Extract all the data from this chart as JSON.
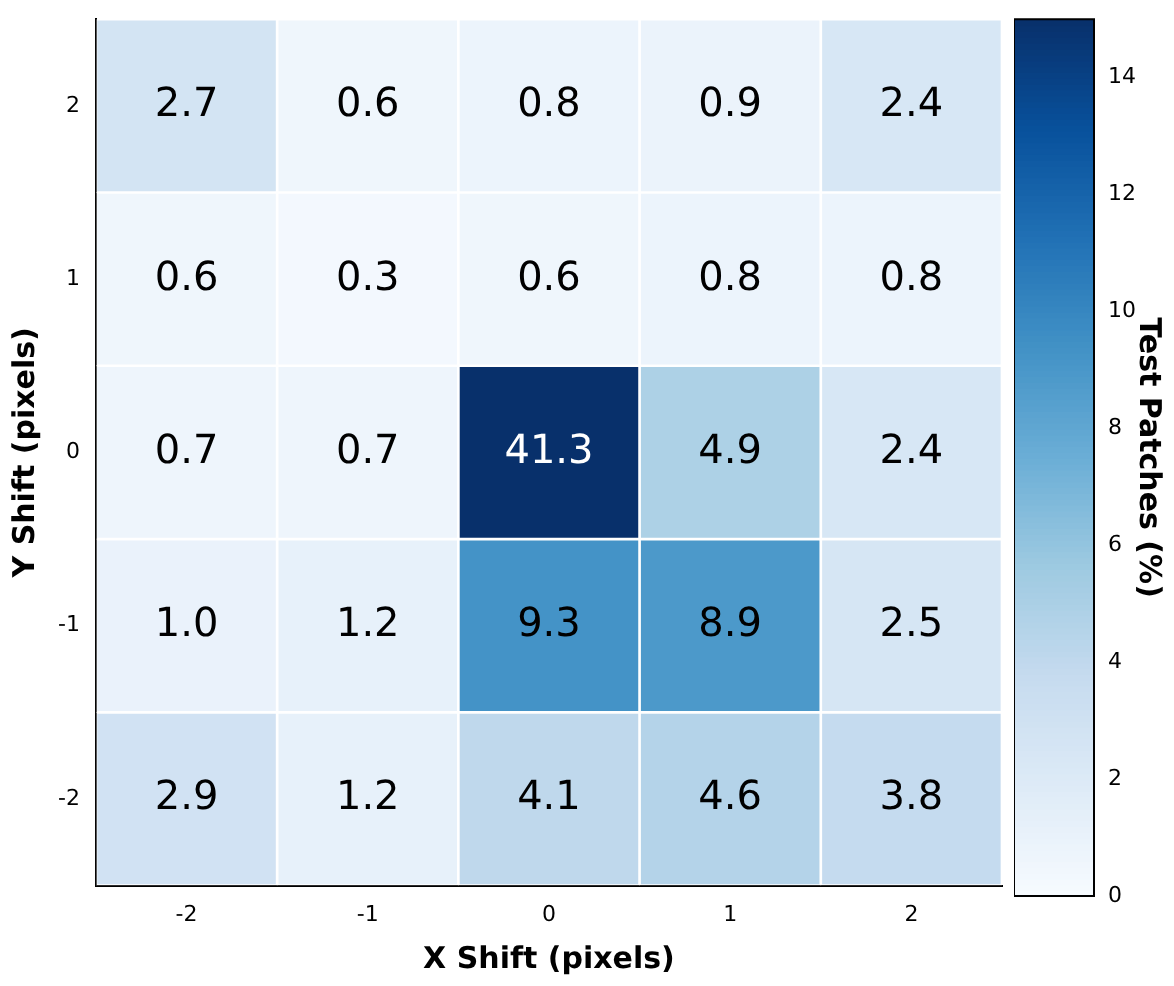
{
  "chart_data": {
    "type": "heatmap",
    "xlabel": "X Shift (pixels)",
    "ylabel": "Y Shift (pixels)",
    "clabel": "Test Patches (%)",
    "categories": [
      "-2",
      "-1",
      "0",
      "1",
      "2"
    ],
    "y_categories": [
      "2",
      "1",
      "0",
      "-1",
      "-2"
    ],
    "cells": [
      [
        2.7,
        0.6,
        0.8,
        0.9,
        2.4
      ],
      [
        0.6,
        0.3,
        0.6,
        0.8,
        0.8
      ],
      [
        0.7,
        0.7,
        41.3,
        4.9,
        2.4
      ],
      [
        1.0,
        1.2,
        9.3,
        8.9,
        2.5
      ],
      [
        2.9,
        1.2,
        4.1,
        4.6,
        3.8
      ]
    ],
    "cell_labels": [
      [
        "2.7",
        "0.6",
        "0.8",
        "0.9",
        "2.4"
      ],
      [
        "0.6",
        "0.3",
        "0.6",
        "0.8",
        "0.8"
      ],
      [
        "0.7",
        "0.7",
        "41.3",
        "4.9",
        "2.4"
      ],
      [
        "1.0",
        "1.2",
        "9.3",
        "8.9",
        "2.5"
      ],
      [
        "2.9",
        "1.2",
        "4.1",
        "4.6",
        "3.8"
      ]
    ],
    "clim": [
      0,
      15
    ],
    "cticks": [
      0,
      2,
      4,
      6,
      8,
      10,
      12,
      14
    ],
    "grid": false
  }
}
